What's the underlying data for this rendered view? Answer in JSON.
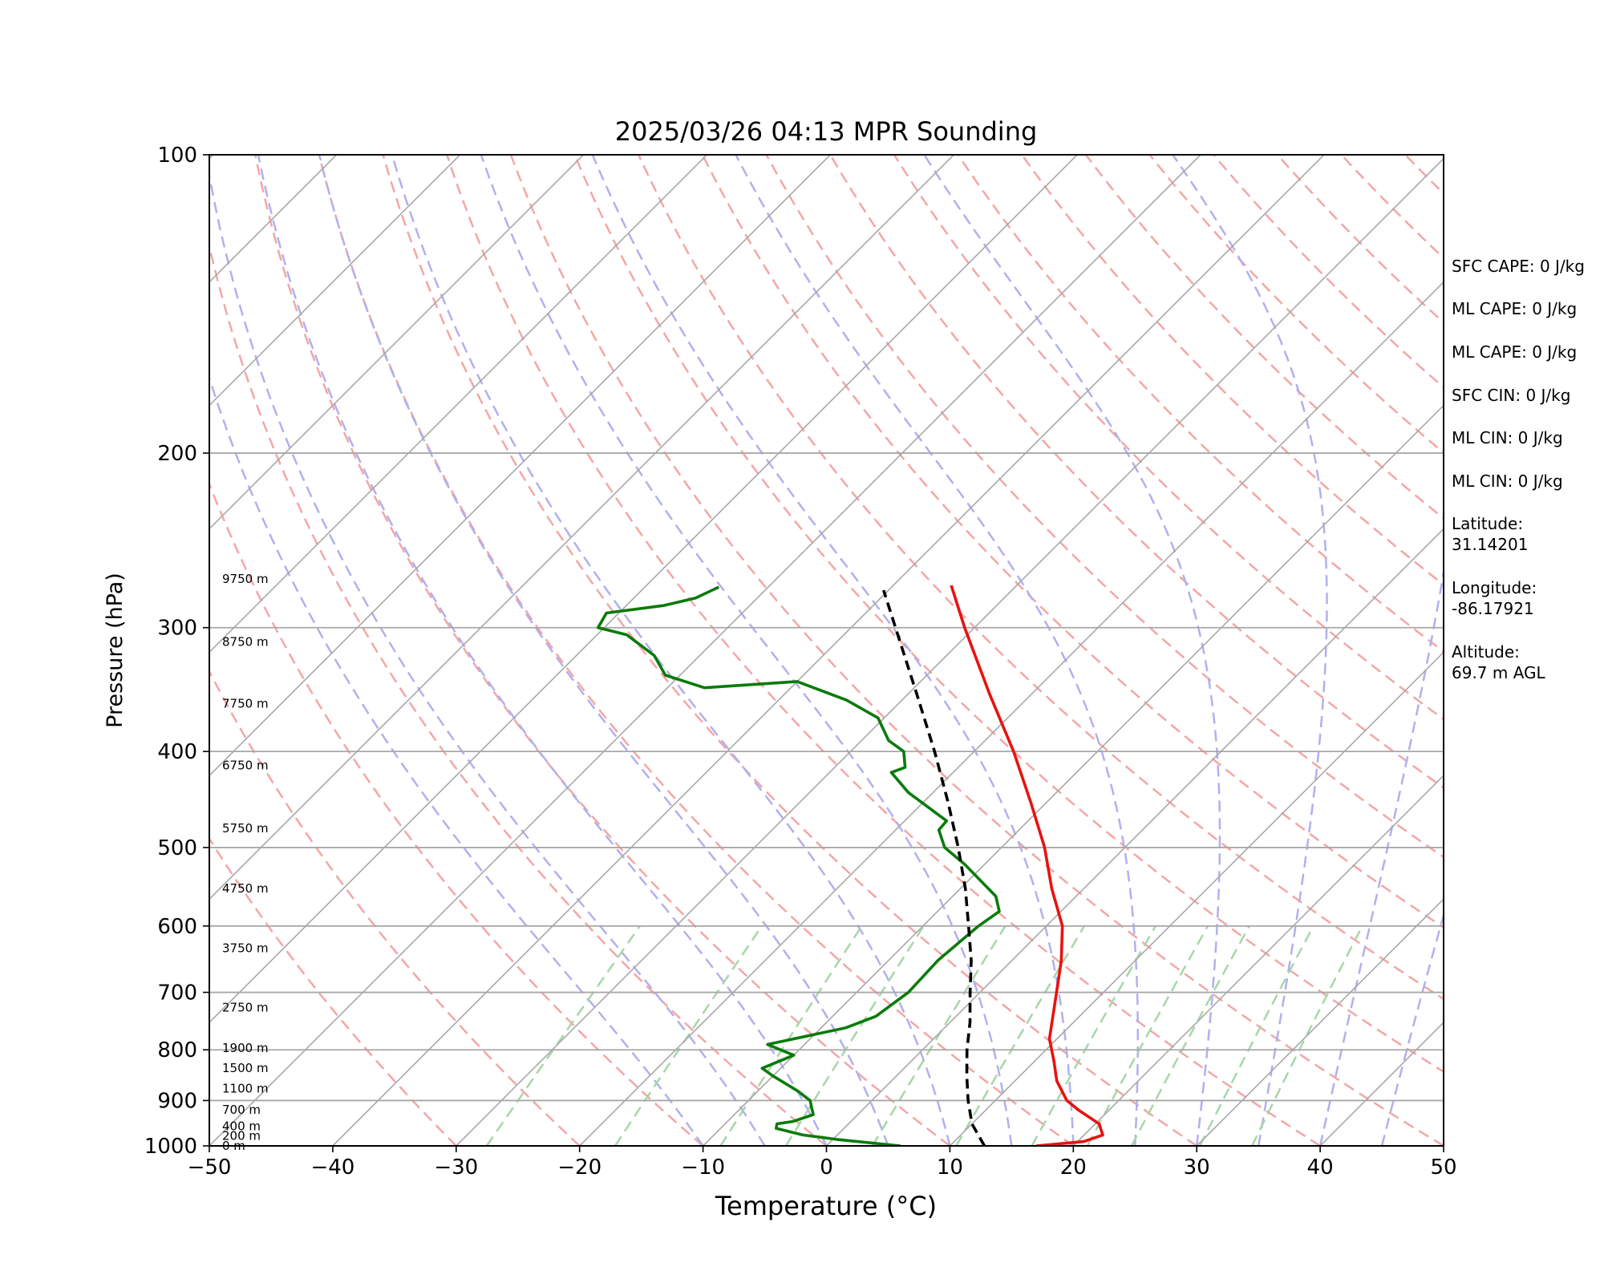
{
  "chart_data": {
    "type": "line",
    "title": "2025/03/26 04:13 MPR Sounding",
    "xlabel": "Temperature (°C)",
    "ylabel": "Pressure (hPa)",
    "xlim": [
      -50,
      50
    ],
    "ylim": [
      1000,
      100
    ],
    "y_scale": "log",
    "skew": "45°",
    "grid": true,
    "x_ticks": [
      "−50",
      "−40",
      "−30",
      "−20",
      "−10",
      "0",
      "10",
      "20",
      "30",
      "40",
      "50"
    ],
    "x_tick_values": [
      -50,
      -40,
      -30,
      -20,
      -10,
      0,
      10,
      20,
      30,
      40,
      50
    ],
    "y_ticks": [
      "1000",
      "900",
      "800",
      "700",
      "600",
      "500",
      "400",
      "300",
      "200",
      "100"
    ],
    "y_tick_values": [
      1000,
      900,
      800,
      700,
      600,
      500,
      400,
      300,
      200,
      100
    ],
    "colors": {
      "temperature": "#e8120f",
      "dewpoint": "#0a7b0a",
      "parcel": "#000000",
      "isotherm": "#a8a8a8",
      "dry_adiabat": "#f4a6a6",
      "moist_adiabat": "#b0b0f0",
      "mixing_ratio": "#a8d6a8",
      "isobar": "#a8a8a8"
    },
    "series": [
      {
        "key": "temperature",
        "points": [
          {
            "p": 1000,
            "t": 17.0
          },
          {
            "p": 990,
            "t": 20.5
          },
          {
            "p": 975,
            "t": 21.5
          },
          {
            "p": 950,
            "t": 20.3
          },
          {
            "p": 920,
            "t": 17.5
          },
          {
            "p": 900,
            "t": 15.8
          },
          {
            "p": 860,
            "t": 13.4
          },
          {
            "p": 820,
            "t": 11.5
          },
          {
            "p": 780,
            "t": 9.4
          },
          {
            "p": 700,
            "t": 6.2
          },
          {
            "p": 650,
            "t": 4.0
          },
          {
            "p": 600,
            "t": 1.3
          },
          {
            "p": 550,
            "t": -2.6
          },
          {
            "p": 500,
            "t": -6.5
          },
          {
            "p": 450,
            "t": -11.3
          },
          {
            "p": 400,
            "t": -16.8
          },
          {
            "p": 350,
            "t": -23.4
          },
          {
            "p": 300,
            "t": -30.8
          },
          {
            "p": 272,
            "t": -35.3
          }
        ]
      },
      {
        "key": "dewpoint",
        "points": [
          {
            "p": 1000,
            "t": 6.0
          },
          {
            "p": 985,
            "t": 0.3
          },
          {
            "p": 975,
            "t": -2.8
          },
          {
            "p": 960,
            "t": -5.5
          },
          {
            "p": 950,
            "t": -5.8
          },
          {
            "p": 945,
            "t": -4.7
          },
          {
            "p": 930,
            "t": -3.6
          },
          {
            "p": 915,
            "t": -4.3
          },
          {
            "p": 900,
            "t": -5.0
          },
          {
            "p": 880,
            "t": -6.8
          },
          {
            "p": 850,
            "t": -10.0
          },
          {
            "p": 835,
            "t": -11.5
          },
          {
            "p": 810,
            "t": -10.0
          },
          {
            "p": 790,
            "t": -13.0
          },
          {
            "p": 760,
            "t": -8.0
          },
          {
            "p": 740,
            "t": -6.5
          },
          {
            "p": 700,
            "t": -5.8
          },
          {
            "p": 650,
            "t": -6.0
          },
          {
            "p": 600,
            "t": -5.5
          },
          {
            "p": 580,
            "t": -5.0
          },
          {
            "p": 560,
            "t": -6.5
          },
          {
            "p": 520,
            "t": -11.6
          },
          {
            "p": 500,
            "t": -14.6
          },
          {
            "p": 480,
            "t": -16.5
          },
          {
            "p": 470,
            "t": -16.6
          },
          {
            "p": 440,
            "t": -22.0
          },
          {
            "p": 420,
            "t": -25.0
          },
          {
            "p": 415,
            "t": -24.3
          },
          {
            "p": 400,
            "t": -25.7
          },
          {
            "p": 390,
            "t": -27.8
          },
          {
            "p": 370,
            "t": -30.5
          },
          {
            "p": 355,
            "t": -34.5
          },
          {
            "p": 340,
            "t": -40.0
          },
          {
            "p": 345,
            "t": -47.0
          },
          {
            "p": 335,
            "t": -51.2
          },
          {
            "p": 320,
            "t": -53.7
          },
          {
            "p": 305,
            "t": -57.6
          },
          {
            "p": 300,
            "t": -60.5
          },
          {
            "p": 290,
            "t": -61.0
          },
          {
            "p": 285,
            "t": -57.0
          },
          {
            "p": 280,
            "t": -55.0
          },
          {
            "p": 273,
            "t": -54.0
          }
        ]
      },
      {
        "key": "parcel",
        "points": [
          {
            "p": 1000,
            "t": 12.8
          },
          {
            "p": 950,
            "t": 10.0
          },
          {
            "p": 900,
            "t": 7.8
          },
          {
            "p": 850,
            "t": 5.7
          },
          {
            "p": 800,
            "t": 3.6
          },
          {
            "p": 750,
            "t": 1.6
          },
          {
            "p": 700,
            "t": -0.8
          },
          {
            "p": 650,
            "t": -3.3
          },
          {
            "p": 600,
            "t": -6.3
          },
          {
            "p": 550,
            "t": -9.6
          },
          {
            "p": 500,
            "t": -13.5
          },
          {
            "p": 450,
            "t": -18.0
          },
          {
            "p": 400,
            "t": -23.2
          },
          {
            "p": 350,
            "t": -29.3
          },
          {
            "p": 300,
            "t": -36.4
          },
          {
            "p": 275,
            "t": -40.4
          }
        ]
      }
    ],
    "height_labels": [
      {
        "p": 1000,
        "text": "0 m"
      },
      {
        "p": 977,
        "text": "200 m"
      },
      {
        "p": 955,
        "text": "400 m"
      },
      {
        "p": 920,
        "text": "700 m"
      },
      {
        "p": 875,
        "text": "1100 m"
      },
      {
        "p": 835,
        "text": "1500 m"
      },
      {
        "p": 797,
        "text": "1900 m"
      },
      {
        "p": 725,
        "text": "2750 m"
      },
      {
        "p": 632,
        "text": "3750 m"
      },
      {
        "p": 550,
        "text": "4750 m"
      },
      {
        "p": 478,
        "text": "5750 m"
      },
      {
        "p": 413,
        "text": "6750 m"
      },
      {
        "p": 358,
        "text": "7750 m"
      },
      {
        "p": 310,
        "text": "8750 m"
      },
      {
        "p": 268,
        "text": "9750 m"
      }
    ],
    "annotations": {
      "sfc_cape": "SFC CAPE: 0 J/kg",
      "ml_cape_1": "ML CAPE: 0 J/kg",
      "ml_cape_2": "ML CAPE: 0 J/kg",
      "sfc_cin": "SFC CIN: 0 J/kg",
      "ml_cin_1": "ML CIN: 0 J/kg",
      "ml_cin_2": "ML CIN: 0 J/kg",
      "latitude_label": "Latitude:",
      "latitude_value": "31.14201",
      "longitude_label": "Longitude:",
      "longitude_value": "-86.17921",
      "altitude_label": "Altitude:",
      "altitude_value": "69.7 m AGL"
    }
  }
}
